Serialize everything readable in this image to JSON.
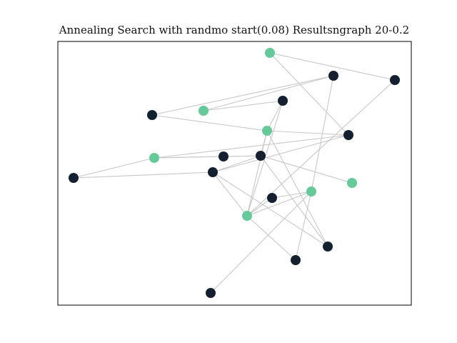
{
  "figure": {
    "title": "Annealing Search with randmo start(0.08) Resultsngraph 20-0.2"
  },
  "colors": {
    "background": "#ffffff",
    "frame": "#000000",
    "edge": "#c8c8c8",
    "node_dark": "#142030",
    "node_green": "#66c999"
  },
  "graph": {
    "nodes": [
      {
        "id": "n0",
        "group": "dark"
      },
      {
        "id": "n1",
        "group": "green"
      },
      {
        "id": "n2",
        "group": "dark"
      },
      {
        "id": "n3",
        "group": "dark"
      },
      {
        "id": "n4",
        "group": "green"
      },
      {
        "id": "n5",
        "group": "dark"
      },
      {
        "id": "n6",
        "group": "green"
      },
      {
        "id": "n7",
        "group": "dark"
      },
      {
        "id": "n8",
        "group": "green"
      },
      {
        "id": "n9",
        "group": "dark"
      },
      {
        "id": "n10",
        "group": "dark"
      },
      {
        "id": "n11",
        "group": "dark"
      },
      {
        "id": "n12",
        "group": "dark"
      },
      {
        "id": "n13",
        "group": "green"
      },
      {
        "id": "n14",
        "group": "green"
      },
      {
        "id": "n15",
        "group": "dark"
      },
      {
        "id": "n16",
        "group": "green"
      },
      {
        "id": "n17",
        "group": "dark"
      },
      {
        "id": "n18",
        "group": "dark"
      },
      {
        "id": "n19",
        "group": "dark"
      }
    ],
    "edges": [
      [
        "n0",
        "n6"
      ],
      [
        "n0",
        "n3"
      ],
      [
        "n1",
        "n3"
      ],
      [
        "n1",
        "n2"
      ],
      [
        "n2",
        "n6"
      ],
      [
        "n2",
        "n16"
      ],
      [
        "n3",
        "n14"
      ],
      [
        "n4",
        "n5"
      ],
      [
        "n4",
        "n11"
      ],
      [
        "n5",
        "n16"
      ],
      [
        "n6",
        "n11"
      ],
      [
        "n6",
        "n16"
      ],
      [
        "n6",
        "n17"
      ],
      [
        "n6",
        "n10"
      ],
      [
        "n7",
        "n12"
      ],
      [
        "n7",
        "n8"
      ],
      [
        "n8",
        "n10"
      ],
      [
        "n8",
        "n9"
      ],
      [
        "n9",
        "n10"
      ],
      [
        "n10",
        "n12"
      ],
      [
        "n10",
        "n17"
      ],
      [
        "n10",
        "n13"
      ],
      [
        "n11",
        "n8"
      ],
      [
        "n11",
        "n12"
      ],
      [
        "n12",
        "n16"
      ],
      [
        "n12",
        "n17"
      ],
      [
        "n14",
        "n16"
      ],
      [
        "n14",
        "n18"
      ],
      [
        "n14",
        "n19"
      ],
      [
        "n14",
        "n15"
      ],
      [
        "n15",
        "n16"
      ],
      [
        "n16",
        "n18"
      ]
    ]
  }
}
